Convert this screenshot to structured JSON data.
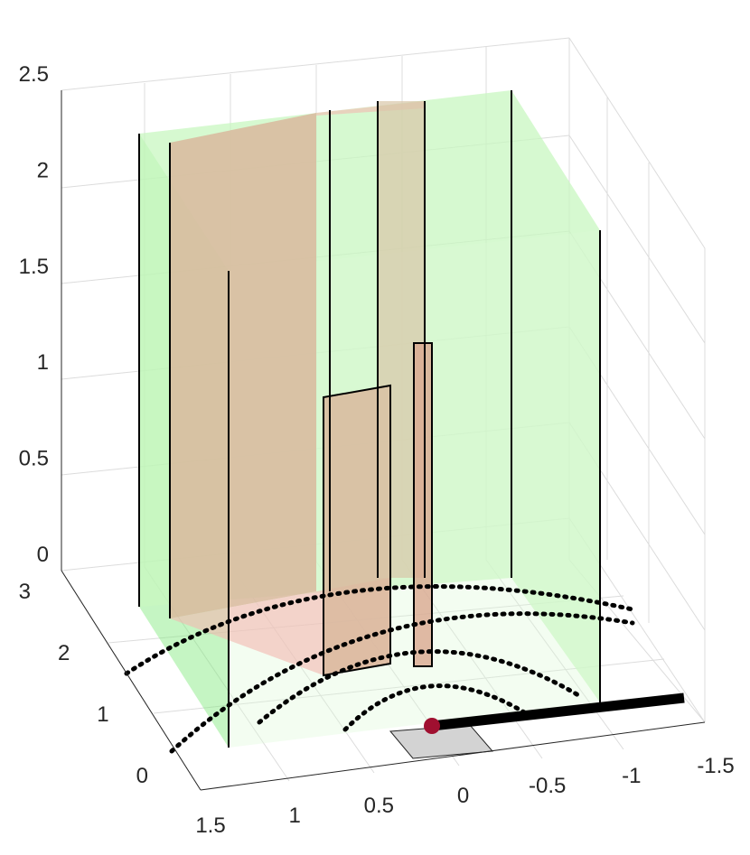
{
  "chart_data": {
    "type": "3d-surface-scene",
    "axes": {
      "x": {
        "ticks": [
          "1.5",
          "1",
          "0.5",
          "0",
          "-0.5",
          "-1",
          "-1.5"
        ],
        "range": [
          -1.5,
          1.5
        ]
      },
      "y": {
        "ticks": [
          "0",
          "1",
          "2",
          "3"
        ],
        "range": [
          0,
          3
        ]
      },
      "z": {
        "ticks": [
          "0",
          "0.5",
          "1",
          "1.5",
          "2",
          "2.5"
        ],
        "range": [
          0,
          2.5
        ]
      }
    },
    "grid": true,
    "colors": {
      "green_walls": "#c8f7c0",
      "red_panels": "#f4b8b0",
      "floor_square": "#d3d3d3",
      "bar_path": "#000000",
      "marker": "#a01030",
      "dotted_arcs": "#000000"
    },
    "elements": [
      {
        "name": "green-wall-room",
        "description": "translucent green enclosure walls"
      },
      {
        "name": "red-panels",
        "description": "translucent red/pink rectangular panels"
      },
      {
        "name": "dotted-arcs",
        "description": "four concentric dotted elliptic arcs on floor"
      },
      {
        "name": "bar",
        "description": "thick black line segment on floor"
      },
      {
        "name": "marker",
        "description": "dark red dot at bar start"
      },
      {
        "name": "floor-square",
        "description": "gray square on floor"
      }
    ]
  }
}
